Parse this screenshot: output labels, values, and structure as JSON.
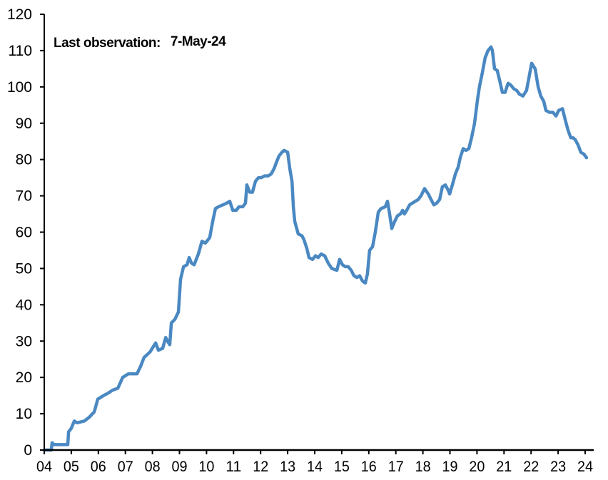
{
  "chart_data": {
    "type": "line",
    "title": "",
    "xlabel": "",
    "ylabel": "",
    "annotation": {
      "label": "Last observation:",
      "value": "7-May-24"
    },
    "xlim": [
      2004,
      2024.35
    ],
    "ylim": [
      0,
      120
    ],
    "y_ticks": [
      0,
      10,
      20,
      30,
      40,
      50,
      60,
      70,
      80,
      90,
      100,
      110,
      120
    ],
    "x_tick_labels": [
      "04",
      "05",
      "06",
      "07",
      "08",
      "09",
      "10",
      "11",
      "12",
      "13",
      "14",
      "15",
      "16",
      "17",
      "18",
      "19",
      "20",
      "21",
      "22",
      "23",
      "24"
    ],
    "grid": false,
    "legend": "none",
    "line_color": "#4a88c2",
    "series": [
      {
        "x": [
          2004.0,
          2004.26,
          2004.29,
          2004.37,
          2004.87,
          2004.9,
          2005.0,
          2005.11,
          2005.21,
          2005.48,
          2005.66,
          2005.85,
          2005.98,
          2006.19,
          2006.32,
          2006.53,
          2006.72,
          2006.9,
          2007.11,
          2007.27,
          2007.43,
          2007.56,
          2007.69,
          2007.91,
          2008.12,
          2008.22,
          2008.38,
          2008.49,
          2008.56,
          2008.64,
          2008.7,
          2008.83,
          2008.96,
          2009.04,
          2009.15,
          2009.28,
          2009.36,
          2009.44,
          2009.54,
          2009.7,
          2009.83,
          2009.96,
          2010.12,
          2010.23,
          2010.33,
          2010.44,
          2010.6,
          2010.75,
          2010.86,
          2010.97,
          2011.1,
          2011.2,
          2011.34,
          2011.44,
          2011.49,
          2011.6,
          2011.7,
          2011.81,
          2011.92,
          2012.02,
          2012.15,
          2012.28,
          2012.39,
          2012.5,
          2012.6,
          2012.68,
          2012.79,
          2012.87,
          2013.0,
          2013.08,
          2013.16,
          2013.21,
          2013.26,
          2013.39,
          2013.53,
          2013.6,
          2013.71,
          2013.79,
          2013.92,
          2014.03,
          2014.13,
          2014.24,
          2014.37,
          2014.5,
          2014.63,
          2014.82,
          2014.92,
          2015.03,
          2015.13,
          2015.24,
          2015.35,
          2015.45,
          2015.56,
          2015.66,
          2015.77,
          2015.87,
          2015.95,
          2016.03,
          2016.14,
          2016.24,
          2016.35,
          2016.45,
          2016.61,
          2016.69,
          2016.77,
          2016.85,
          2016.96,
          2017.06,
          2017.17,
          2017.25,
          2017.32,
          2017.4,
          2017.51,
          2017.61,
          2017.72,
          2017.83,
          2017.93,
          2018.06,
          2018.2,
          2018.3,
          2018.41,
          2018.51,
          2018.62,
          2018.72,
          2018.83,
          2018.94,
          2018.99,
          2019.09,
          2019.2,
          2019.31,
          2019.38,
          2019.49,
          2019.59,
          2019.7,
          2019.8,
          2019.91,
          2020.01,
          2020.09,
          2020.2,
          2020.3,
          2020.41,
          2020.52,
          2020.57,
          2020.65,
          2020.75,
          2020.83,
          2020.94,
          2021.04,
          2021.15,
          2021.25,
          2021.36,
          2021.47,
          2021.57,
          2021.7,
          2021.83,
          2021.92,
          2022.02,
          2022.15,
          2022.26,
          2022.36,
          2022.47,
          2022.55,
          2022.68,
          2022.81,
          2022.92,
          2023.02,
          2023.16,
          2023.26,
          2023.37,
          2023.47,
          2023.55,
          2023.63,
          2023.74,
          2023.84,
          2023.95,
          2024.05
        ],
        "y": [
          0,
          0,
          2,
          1.5,
          1.5,
          5,
          6,
          8,
          7.5,
          8,
          9,
          10.5,
          14,
          15,
          15.5,
          16.5,
          17,
          20,
          21,
          21,
          21,
          23,
          25.5,
          27,
          29.5,
          27.5,
          28,
          31,
          30,
          29,
          35,
          36,
          38,
          47,
          50.5,
          51,
          53,
          51.5,
          51,
          54,
          57.5,
          57,
          58.5,
          63,
          66.5,
          67,
          67.5,
          68,
          68.5,
          66,
          66,
          67,
          67,
          68,
          73,
          71,
          71,
          74,
          75,
          75,
          75.5,
          75.5,
          76,
          77.5,
          79.5,
          81,
          82,
          82.5,
          82,
          77.5,
          74,
          67,
          63,
          59.5,
          59,
          58,
          55.5,
          53,
          52.5,
          53.5,
          53,
          54,
          53.5,
          51.5,
          50,
          49.5,
          52.5,
          51,
          50.5,
          50.5,
          49.5,
          48,
          47.5,
          48,
          46.5,
          46,
          48.5,
          55,
          56,
          60,
          65.5,
          66.5,
          67,
          68.5,
          65,
          61,
          63,
          64.5,
          65,
          66,
          65,
          66,
          67.5,
          68,
          68.5,
          69,
          70,
          72,
          70.5,
          69,
          67.5,
          68,
          69,
          72.5,
          73,
          71.5,
          70.5,
          73,
          76,
          78,
          80.5,
          83,
          82.5,
          83,
          86,
          90,
          96,
          100,
          104,
          108,
          110,
          111,
          110,
          105,
          104.5,
          102,
          98.5,
          98.5,
          101,
          100.5,
          99.5,
          99,
          98,
          97.5,
          99,
          102.5,
          106.5,
          105,
          100,
          97.5,
          96,
          93.5,
          93,
          93,
          92,
          93.5,
          94,
          91,
          88,
          86,
          86,
          85.5,
          84,
          82,
          81.5,
          80.5
        ]
      }
    ]
  }
}
